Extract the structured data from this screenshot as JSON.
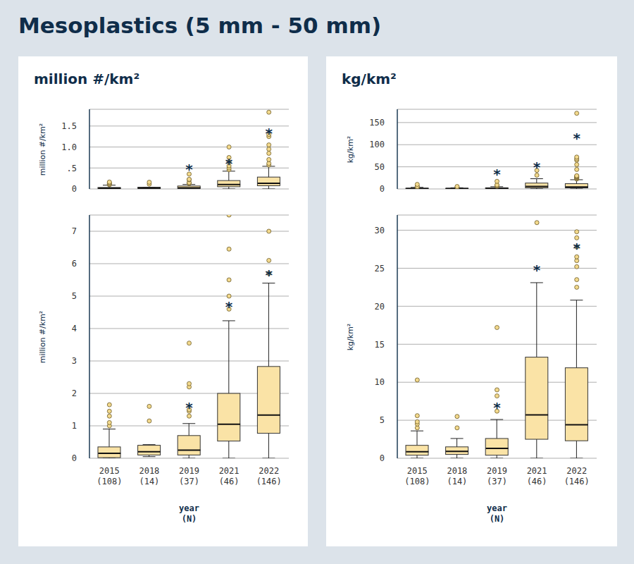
{
  "title": "Mesoplastics (5 mm - 50 mm)",
  "chart_data": [
    {
      "type": "box",
      "title": "million #/km²",
      "y_label": "million #/km²",
      "x_label": "year\n(N)",
      "color": "#fae3a6",
      "point_color": "#f3d98c",
      "grid": true,
      "categories": [
        "2015\n(108)",
        "2018\n(14)",
        "2019\n(37)",
        "2021\n(46)",
        "2022\n(146)"
      ],
      "boxes": [
        {
          "whisker_low": 0,
          "q1": 0.02,
          "median": 0.15,
          "q3": 0.35,
          "whisker_high": 0.9,
          "outliers": [
            1.0,
            1.1,
            1.3,
            1.45,
            1.65
          ]
        },
        {
          "whisker_low": 0.05,
          "q1": 0.1,
          "median": 0.2,
          "q3": 0.4,
          "whisker_high": 0.42,
          "outliers": [
            1.15,
            1.6
          ]
        },
        {
          "whisker_low": 0,
          "q1": 0.1,
          "median": 0.25,
          "q3": 0.7,
          "whisker_high": 1.07,
          "outliers": [
            1.3,
            1.45,
            1.5,
            2.2,
            2.3,
            3.55
          ]
        },
        {
          "whisker_low": 0,
          "q1": 0.53,
          "median": 1.05,
          "q3": 2.0,
          "whisker_high": 4.24,
          "outliers": [
            4.6,
            5.0,
            5.5,
            6.45,
            7.5,
            10.0
          ]
        },
        {
          "whisker_low": 0,
          "q1": 0.77,
          "median": 1.33,
          "q3": 2.83,
          "whisker_high": 5.4,
          "outliers": [
            5.7,
            6.1,
            7.0,
            8.5,
            9.5,
            10.5,
            12.5,
            13.0,
            18.3
          ]
        }
      ],
      "subplots": [
        {
          "ylim": [
            0,
            19
          ],
          "yticks": [
            0,
            {
              "value": 5,
              "label": ".5"
            },
            {
              "value": 10,
              "label": "1.0"
            },
            {
              "value": 15,
              "label": "1.5"
            }
          ],
          "tick_labels": "y",
          "annotations": [
            {
              "text": "*",
              "x": "2019\n(37)",
              "y": 5.2
            },
            {
              "text": "*",
              "x": "2021\n(46)",
              "y": 6.6
            },
            {
              "text": "*",
              "x": "2022\n(146)",
              "y": 13.8
            }
          ]
        },
        {
          "ylim": [
            0,
            7.5
          ],
          "yticks": [
            0,
            1,
            2,
            3,
            4,
            5,
            6,
            7
          ],
          "annotations": [
            {
              "text": "*",
              "x": "2019\n(37)",
              "y": 1.63
            },
            {
              "text": "*",
              "x": "2021\n(46)",
              "y": 4.75
            },
            {
              "text": "*",
              "x": "2022\n(146)",
              "y": 5.72
            }
          ]
        }
      ]
    },
    {
      "type": "box",
      "title": "kg/km²",
      "y_label": "kg/km²",
      "x_label": "year\n(N)",
      "color": "#fae3a6",
      "point_color": "#f3d98c",
      "grid": true,
      "categories": [
        "2015\n(108)",
        "2018\n(14)",
        "2019\n(37)",
        "2021\n(46)",
        "2022\n(146)"
      ],
      "boxes": [
        {
          "whisker_low": 0,
          "q1": 0.4,
          "median": 0.85,
          "q3": 1.7,
          "whisker_high": 3.6,
          "outliers": [
            4.0,
            4.5,
            4.8,
            5.6,
            10.3
          ]
        },
        {
          "whisker_low": 0,
          "q1": 0.5,
          "median": 0.9,
          "q3": 1.5,
          "whisker_high": 2.6,
          "outliers": [
            4.0,
            5.5
          ]
        },
        {
          "whisker_low": 0,
          "q1": 0.4,
          "median": 1.3,
          "q3": 2.6,
          "whisker_high": 5.1,
          "outliers": [
            6.2,
            8.2,
            9.0,
            17.2
          ]
        },
        {
          "whisker_low": 0,
          "q1": 2.5,
          "median": 5.7,
          "q3": 13.3,
          "whisker_high": 23.1,
          "outliers": [
            31,
            42
          ]
        },
        {
          "whisker_low": 0,
          "q1": 2.3,
          "median": 4.4,
          "q3": 11.9,
          "whisker_high": 20.8,
          "outliers": [
            22.5,
            23.5,
            25.2,
            26.0,
            26.5,
            27.8,
            29.0,
            29.8,
            44,
            55,
            65,
            68,
            72,
            171
          ]
        }
      ],
      "subplots": [
        {
          "ylim": [
            0,
            180
          ],
          "yticks": [
            0,
            50,
            100,
            150
          ],
          "tick_labels": "y",
          "annotations": [
            {
              "text": "*",
              "x": "2019\n(37)",
              "y": 39
            },
            {
              "text": "*",
              "x": "2021\n(46)",
              "y": 54
            },
            {
              "text": "*",
              "x": "2022\n(146)",
              "y": 119
            }
          ]
        },
        {
          "ylim": [
            0,
            32
          ],
          "yticks": [
            0,
            5,
            10,
            15,
            20,
            25,
            30
          ],
          "annotations": [
            {
              "text": "*",
              "x": "2019\n(37)",
              "y": 7.0
            },
            {
              "text": "*",
              "x": "2021\n(46)",
              "y": 25.0
            },
            {
              "text": "*",
              "x": "2022\n(146)",
              "y": 27.9
            }
          ]
        }
      ]
    }
  ]
}
